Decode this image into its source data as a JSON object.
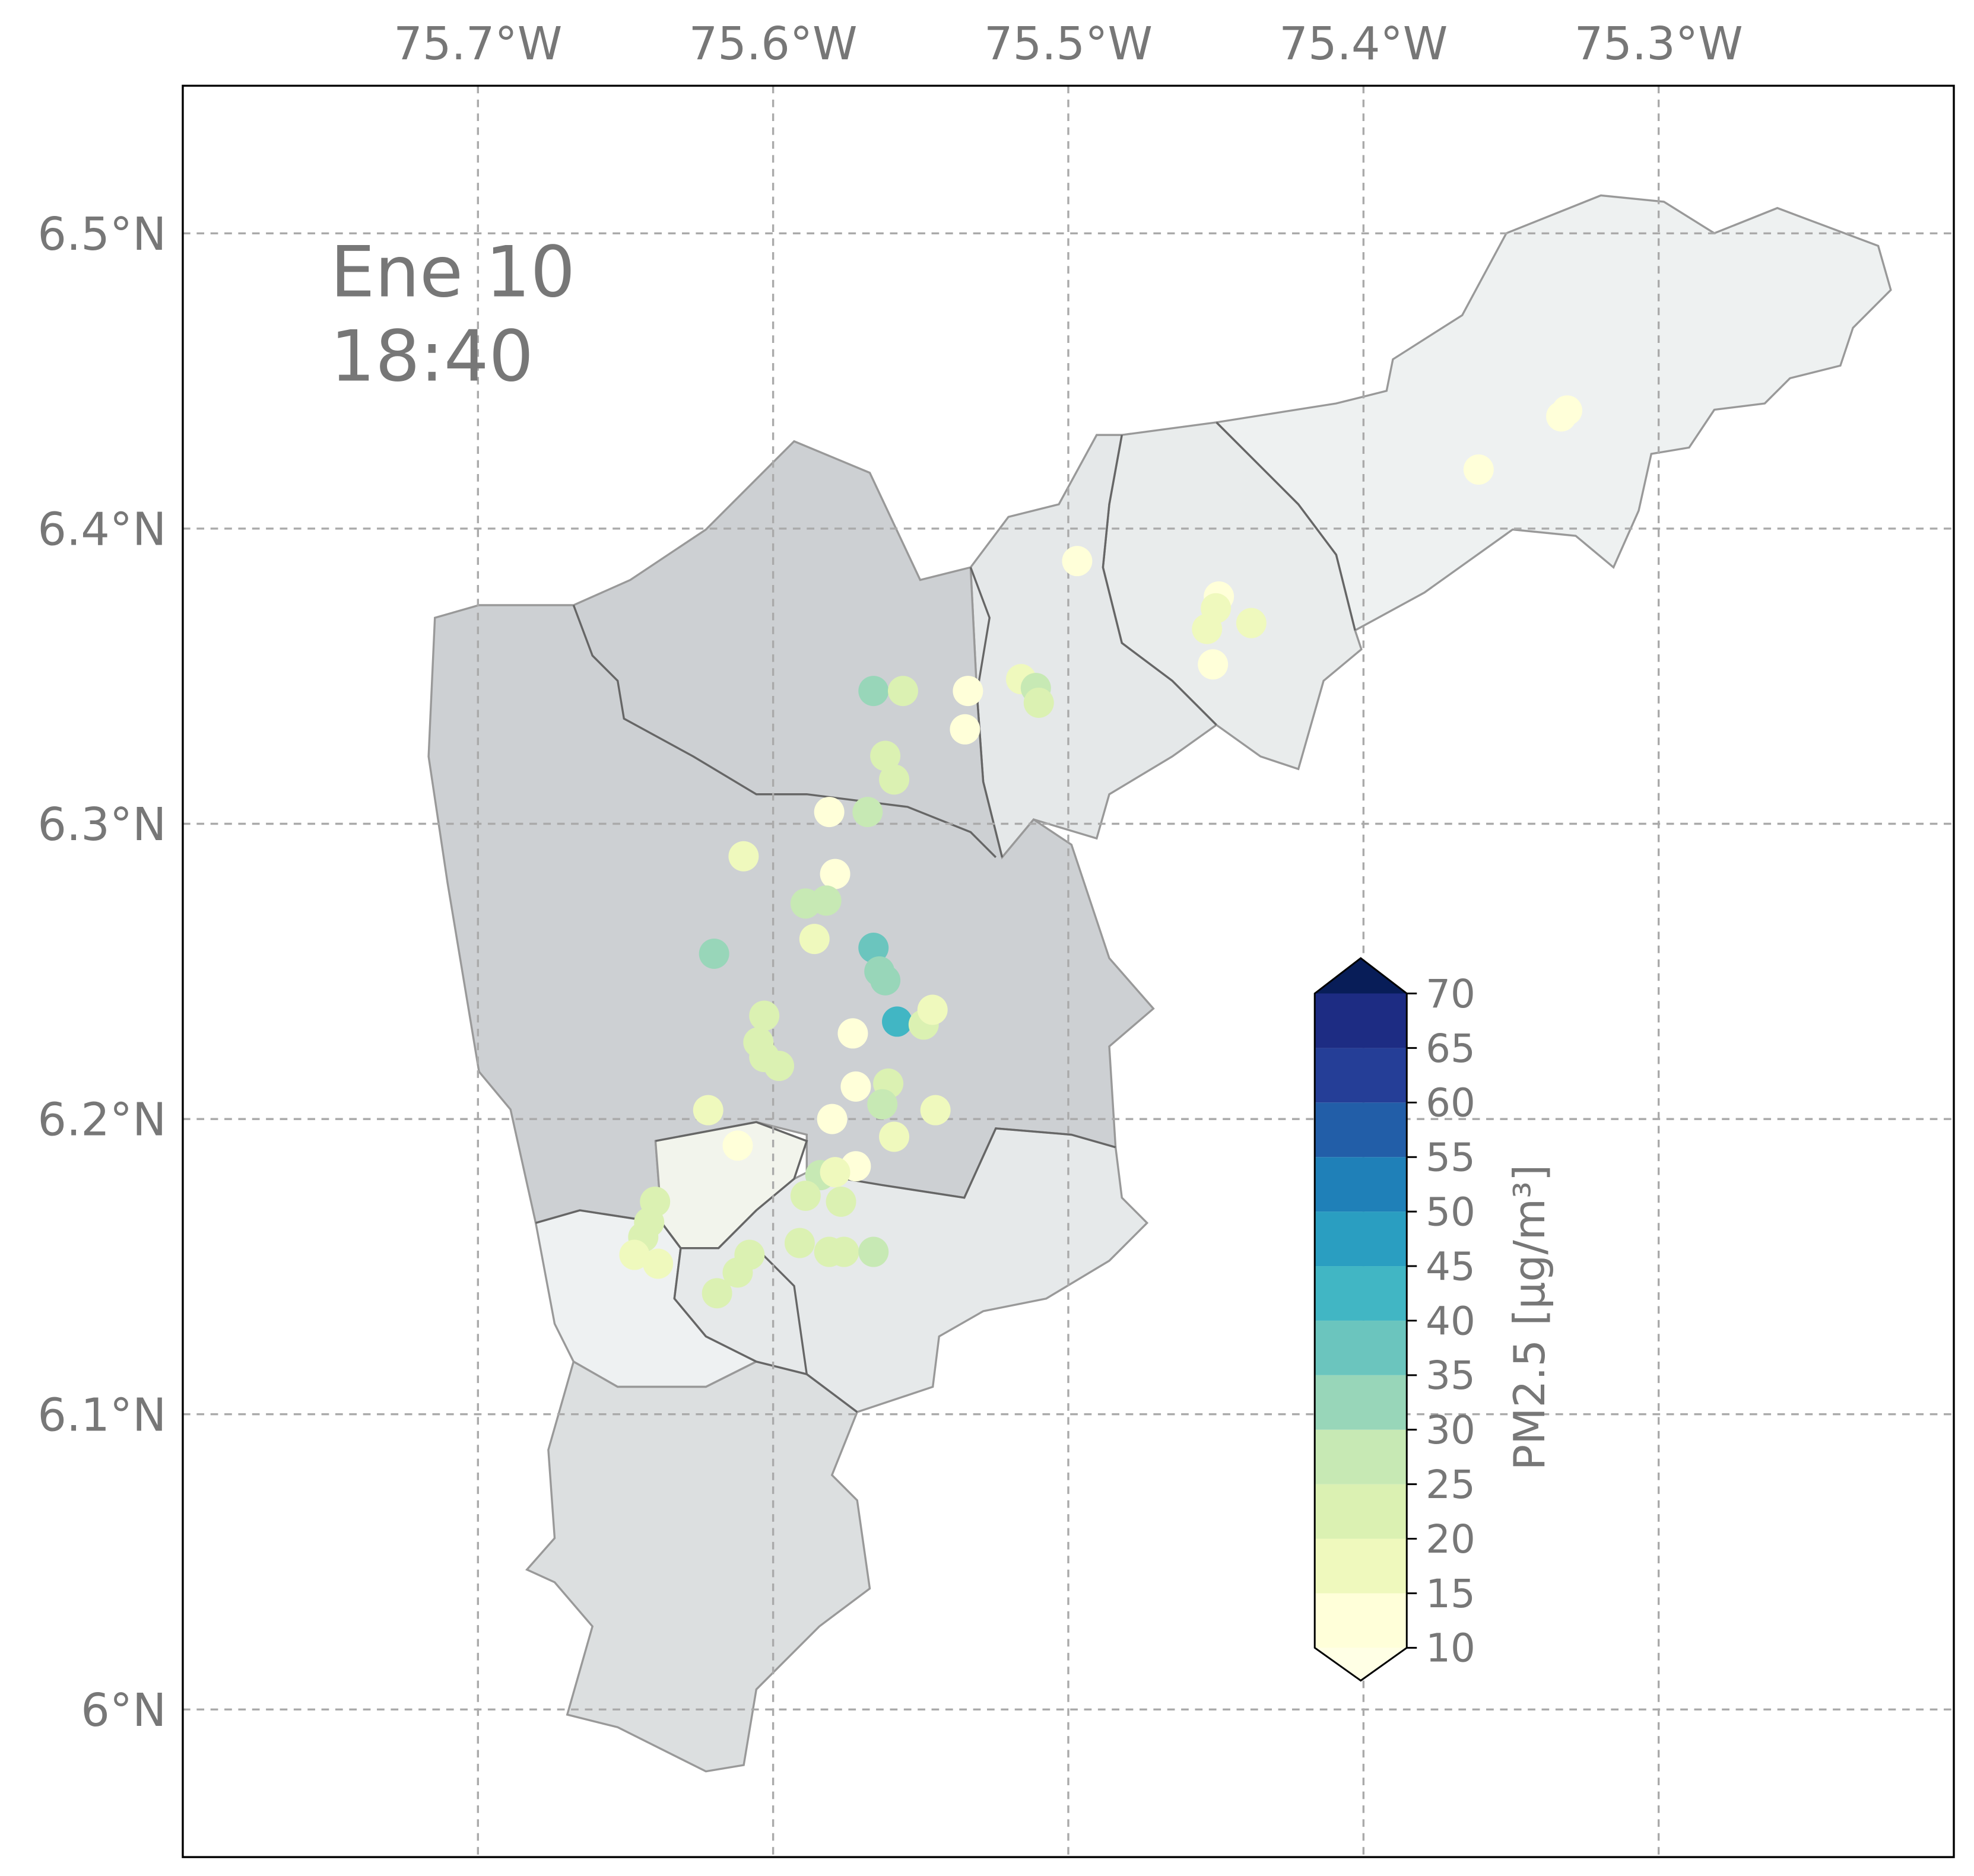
{
  "chart_data": {
    "type": "map",
    "title": "Ene 10",
    "subtitle": "18:40",
    "xlim": [
      -75.8,
      -75.2
    ],
    "ylim": [
      5.95,
      6.55
    ],
    "xticks": [
      {
        "value": -75.7,
        "label": "75.7°W"
      },
      {
        "value": -75.6,
        "label": "75.6°W"
      },
      {
        "value": -75.5,
        "label": "75.5°W"
      },
      {
        "value": -75.4,
        "label": "75.4°W"
      },
      {
        "value": -75.3,
        "label": "75.3°W"
      }
    ],
    "yticks": [
      {
        "value": 6.5,
        "label": "6.5°N"
      },
      {
        "value": 6.4,
        "label": "6.4°N"
      },
      {
        "value": 6.3,
        "label": "6.3°N"
      },
      {
        "value": 6.2,
        "label": "6.2°N"
      },
      {
        "value": 6.1,
        "label": "6.1°N"
      },
      {
        "value": 6,
        "label": "6°N"
      }
    ],
    "grid": true,
    "stations": {
      "lon": [
        -75.566,
        -75.556,
        -75.534,
        -75.516,
        -75.511,
        -75.51,
        -75.535,
        -75.562,
        -75.559,
        -75.581,
        -75.568,
        -75.61,
        -75.579,
        -75.589,
        -75.582,
        -75.586,
        -75.62,
        -75.566,
        -75.564,
        -75.562,
        -75.558,
        -75.549,
        -75.546,
        -75.603,
        -75.605,
        -75.603,
        -75.598,
        -75.573,
        -75.572,
        -75.561,
        -75.563,
        -75.545,
        -75.622,
        -75.58,
        -75.559,
        -75.612,
        -75.572,
        -75.584,
        -75.579,
        -75.589,
        -75.577,
        -75.64,
        -75.642,
        -75.644,
        -75.647,
        -75.639,
        -75.591,
        -75.581,
        -75.576,
        -75.566,
        -75.608,
        -75.612,
        -75.619,
        -75.497,
        -75.449,
        -75.45,
        -75.453,
        -75.438,
        -75.451,
        -75.361,
        -75.333,
        -75.331
      ],
      "lat": [
        6.345,
        6.345,
        6.345,
        6.349,
        6.346,
        6.341,
        6.332,
        6.323,
        6.315,
        6.304,
        6.304,
        6.289,
        6.283,
        6.273,
        6.274,
        6.261,
        6.256,
        6.258,
        6.25,
        6.247,
        6.233,
        6.232,
        6.237,
        6.235,
        6.226,
        6.221,
        6.218,
        6.229,
        6.211,
        6.212,
        6.205,
        6.203,
        6.203,
        6.2,
        6.194,
        6.191,
        6.184,
        6.181,
        6.182,
        6.174,
        6.172,
        6.172,
        6.165,
        6.16,
        6.154,
        6.151,
        6.158,
        6.155,
        6.155,
        6.155,
        6.154,
        6.148,
        6.141,
        6.389,
        6.377,
        6.373,
        6.366,
        6.368,
        6.354,
        6.42,
        6.438,
        6.44
      ],
      "values": [
        32,
        22,
        12,
        18,
        26,
        24,
        12,
        22,
        24,
        12,
        26,
        18,
        13,
        27,
        27,
        18,
        32,
        38,
        30,
        31,
        42,
        22,
        17,
        23,
        22,
        22,
        22,
        12,
        13,
        22,
        27,
        18,
        19,
        12,
        19,
        13,
        12,
        27,
        15,
        22,
        22,
        22,
        23,
        23,
        19,
        16,
        22,
        22,
        22,
        26,
        22,
        22,
        22,
        13,
        13,
        15,
        18,
        18,
        13,
        14,
        14,
        13
      ]
    },
    "colorbar": {
      "label": "PM2.5 [μg/m³]",
      "ticks": [
        10,
        15,
        20,
        25,
        30,
        35,
        40,
        45,
        50,
        55,
        60,
        65,
        70
      ],
      "colors": [
        "#ffffd9",
        "#eff9bd",
        "#dbf1b2",
        "#c7e9b4",
        "#98d6b9",
        "#6bc5be",
        "#41b6c4",
        "#2a9ec1",
        "#1f80b8",
        "#225ea8",
        "#253e97",
        "#1d2c83"
      ],
      "extend_min_color": "#ffffe5",
      "extend_max_color": "#081d58"
    }
  }
}
